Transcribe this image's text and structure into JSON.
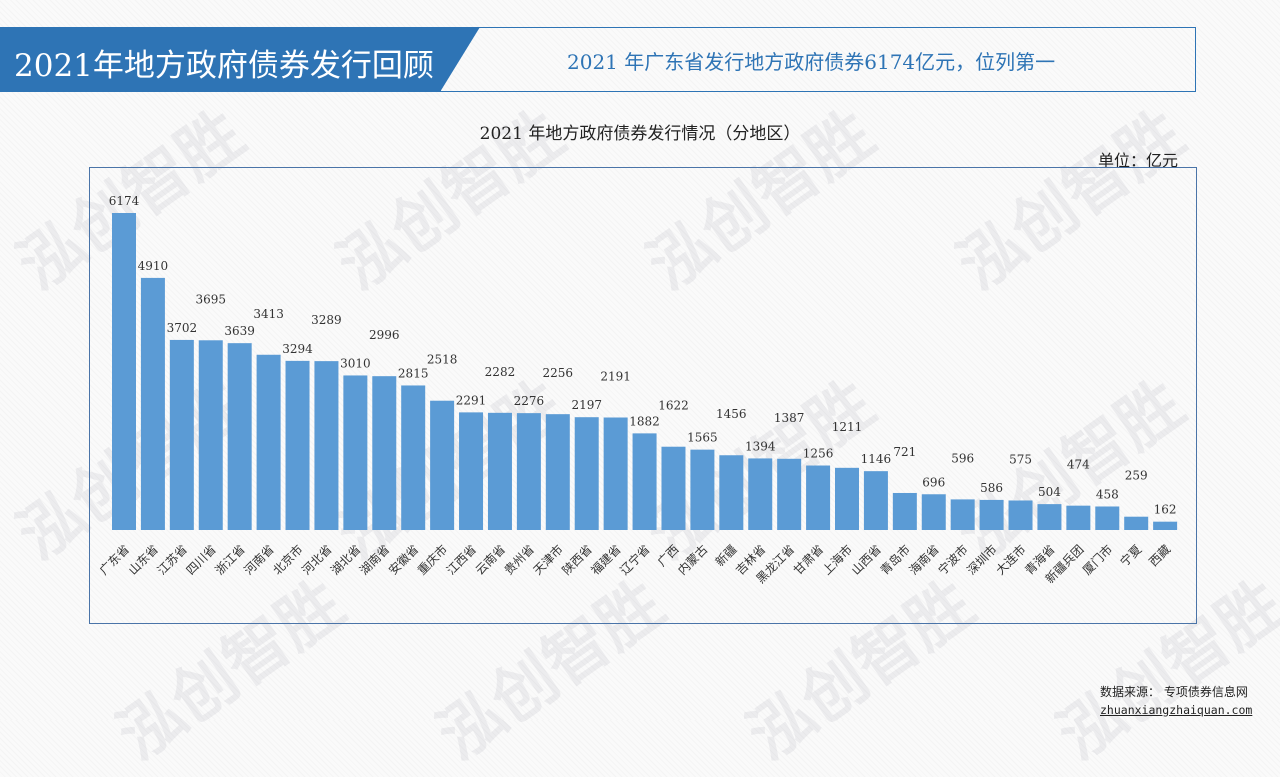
{
  "header": {
    "title": "2021年地方政府债券发行回顾",
    "subtitle": "2021 年广东省发行地方政府债券6174亿元，位列第一"
  },
  "watermark": "泓创智胜",
  "chart_data": {
    "type": "bar",
    "title": "2021 年地方政府债券发行情况（分地区）",
    "unit_label": "单位：亿元",
    "xlabel": "",
    "ylabel": "",
    "ylim": [
      0,
      6174
    ],
    "grid": false,
    "legend": "none",
    "bar_color": "#5b9bd5",
    "categories": [
      "广东省",
      "山东省",
      "江苏省",
      "四川省",
      "浙江省",
      "河南省",
      "北京市",
      "河北省",
      "湖北省",
      "湖南省",
      "安徽省",
      "重庆市",
      "江西省",
      "云南省",
      "贵州省",
      "天津市",
      "陕西省",
      "福建省",
      "辽宁省",
      "广西",
      "内蒙古",
      "新疆",
      "吉林省",
      "黑龙江省",
      "甘肃省",
      "上海市",
      "山西省",
      "青岛市",
      "海南省",
      "宁波市",
      "深圳市",
      "大连市",
      "青海省",
      "新疆兵团",
      "厦门市",
      "宁夏",
      "西藏"
    ],
    "values": [
      6174,
      4910,
      3702,
      3695,
      3639,
      3413,
      3294,
      3289,
      3010,
      2996,
      2815,
      2518,
      2291,
      2282,
      2276,
      2256,
      2197,
      2191,
      1882,
      1622,
      1565,
      1456,
      1394,
      1387,
      1256,
      1211,
      1146,
      721,
      696,
      596,
      586,
      575,
      504,
      474,
      458,
      259,
      162
    ]
  },
  "footer": {
    "source_label": "数据来源：  专项债券信息网",
    "source_url": "zhuanxiangzhaiquan.com"
  }
}
